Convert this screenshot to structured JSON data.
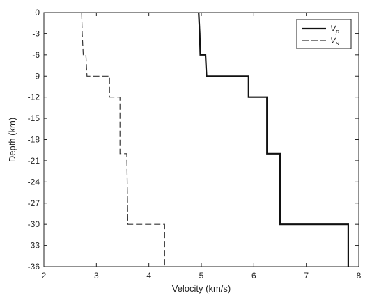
{
  "chart_data": {
    "type": "line",
    "title": "",
    "xlabel": "Velocity (km/s)",
    "ylabel": "Depth (km)",
    "xlim": [
      2,
      8
    ],
    "ylim": [
      -36,
      0
    ],
    "x_ticks": [
      "2",
      "3",
      "4",
      "5",
      "6",
      "7",
      "8"
    ],
    "y_ticks": [
      "0",
      "-3",
      "-6",
      "-9",
      "-12",
      "-15",
      "-18",
      "-21",
      "-24",
      "-27",
      "-30",
      "-33",
      "-36"
    ],
    "grid": false,
    "legend_position": "top-right",
    "series": [
      {
        "name": "Vp",
        "name_main": "V",
        "name_sub": "p",
        "style": "solid",
        "color": "#111111",
        "points": [
          [
            4.95,
            0
          ],
          [
            4.97,
            -3
          ],
          [
            4.98,
            -6
          ],
          [
            5.08,
            -6
          ],
          [
            5.1,
            -9
          ],
          [
            5.9,
            -9
          ],
          [
            5.9,
            -12
          ],
          [
            6.25,
            -12
          ],
          [
            6.25,
            -20
          ],
          [
            6.5,
            -20
          ],
          [
            6.5,
            -30
          ],
          [
            7.8,
            -30
          ],
          [
            7.8,
            -36
          ]
        ]
      },
      {
        "name": "Vs",
        "name_main": "V",
        "name_sub": "s",
        "style": "dashed",
        "color": "#333333",
        "points": [
          [
            2.72,
            0
          ],
          [
            2.73,
            -3
          ],
          [
            2.75,
            -6
          ],
          [
            2.8,
            -6
          ],
          [
            2.82,
            -9
          ],
          [
            3.25,
            -9
          ],
          [
            3.25,
            -12
          ],
          [
            3.45,
            -12
          ],
          [
            3.45,
            -20
          ],
          [
            3.58,
            -20
          ],
          [
            3.6,
            -30
          ],
          [
            4.3,
            -30
          ],
          [
            4.3,
            -36
          ]
        ]
      }
    ]
  }
}
